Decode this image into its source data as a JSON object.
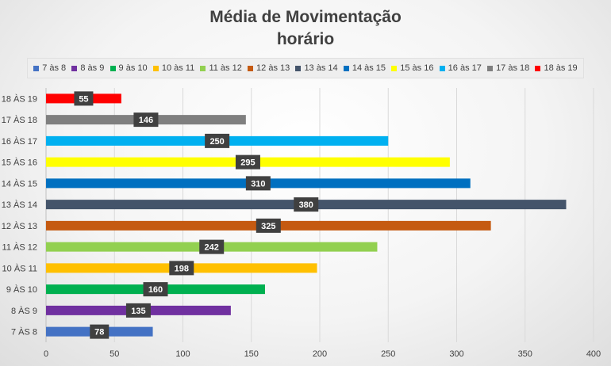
{
  "chart_data": {
    "type": "bar",
    "orientation": "horizontal",
    "title_line1": "Média de Movimentação",
    "title_line2": "horário",
    "categories": [
      "7 ÀS 8",
      "8 ÀS 9",
      "9 ÀS 10",
      "10 ÀS 11",
      "11 ÀS 12",
      "12 ÀS 13",
      "13 ÀS 14",
      "14 ÀS 15",
      "15 ÀS 16",
      "16 ÀS 17",
      "17 ÀS 18",
      "18 ÀS 19"
    ],
    "legend": [
      "7 às 8",
      "8 às 9",
      "9 às 10",
      "10 às 11",
      "11 às 12",
      "12 às 13",
      "13 às 14",
      "14 às 15",
      "15 às 16",
      "16 às 17",
      "17 às 18",
      "18 às 19"
    ],
    "values": [
      78,
      135,
      160,
      198,
      242,
      325,
      380,
      310,
      295,
      250,
      146,
      55
    ],
    "colors": [
      "#4472c4",
      "#7030a0",
      "#00b050",
      "#ffc000",
      "#92d050",
      "#c55a11",
      "#44546a",
      "#0070c0",
      "#ffff00",
      "#00b0f0",
      "#7f7f7f",
      "#ff0000"
    ],
    "xticks": [
      0,
      50,
      100,
      150,
      200,
      250,
      300,
      350,
      400
    ],
    "xlim": [
      0,
      400
    ],
    "grid": true,
    "legend_position": "top"
  }
}
